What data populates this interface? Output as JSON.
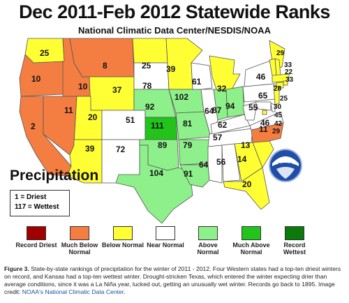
{
  "title": "Dec 2011-Feb 2012 Statewide Ranks",
  "subtitle": "National Climatic Data Center/NESDIS/NOAA",
  "map_label": "Precipitation",
  "key": {
    "driest": "1 = Driest",
    "wettest": "117 = Wettest"
  },
  "colors": {
    "record_driest": "#a10000",
    "much_below": "#f47e42",
    "below": "#ffff33",
    "near": "#ffffff",
    "above": "#8ef08a",
    "much_above": "#22c41c",
    "record_wettest": "#0b7a0b",
    "border": "#555555"
  },
  "legend": [
    {
      "label": "Record Driest",
      "color_key": "record_driest"
    },
    {
      "label": "Much Below Normal",
      "color_key": "much_below"
    },
    {
      "label": "Below Normal",
      "color_key": "below"
    },
    {
      "label": "Near Normal",
      "color_key": "near"
    },
    {
      "label": "Above Normal",
      "color_key": "above"
    },
    {
      "label": "Much Above Normal",
      "color_key": "much_above"
    },
    {
      "label": "Record Wettest",
      "color_key": "record_wettest"
    }
  ],
  "states": {
    "WA": {
      "rank": "25",
      "category": "below"
    },
    "OR": {
      "rank": "10",
      "category": "much_below"
    },
    "CA": {
      "rank": "2",
      "category": "much_below"
    },
    "NV": {
      "rank": "11",
      "category": "much_below"
    },
    "ID": {
      "rank": "10",
      "category": "much_below"
    },
    "MT": {
      "rank": "8",
      "category": "much_below"
    },
    "WY": {
      "rank": "37",
      "category": "below"
    },
    "UT": {
      "rank": "20",
      "category": "below"
    },
    "AZ": {
      "rank": "39",
      "category": "below"
    },
    "CO": {
      "rank": "51",
      "category": "near"
    },
    "NM": {
      "rank": "72",
      "category": "near"
    },
    "ND": {
      "rank": "25",
      "category": "below"
    },
    "SD": {
      "rank": "78",
      "category": "near"
    },
    "NE": {
      "rank": "92",
      "category": "above"
    },
    "KS": {
      "rank": "111",
      "category": "much_above"
    },
    "OK": {
      "rank": "89",
      "category": "above"
    },
    "TX": {
      "rank": "104",
      "category": "above"
    },
    "MN": {
      "rank": "39",
      "category": "below"
    },
    "IA": {
      "rank": "102",
      "category": "above"
    },
    "MO": {
      "rank": "81",
      "category": "above"
    },
    "AR": {
      "rank": "79",
      "category": "above"
    },
    "LA": {
      "rank": "91",
      "category": "above"
    },
    "WI": {
      "rank": "61",
      "category": "near"
    },
    "IL": {
      "rank": "64",
      "category": "near"
    },
    "MI": {
      "rank": "32",
      "category": "below"
    },
    "IN": {
      "rank": "87",
      "category": "above"
    },
    "OH": {
      "rank": "94",
      "category": "above"
    },
    "KY": {
      "rank": "62",
      "category": "near"
    },
    "TN": {
      "rank": "57",
      "category": "near"
    },
    "MS": {
      "rank": "64",
      "category": "near"
    },
    "AL": {
      "rank": "56",
      "category": "near"
    },
    "GA": {
      "rank": "14",
      "category": "below"
    },
    "FL": {
      "rank": "20",
      "category": "below"
    },
    "SC": {
      "rank": "13",
      "category": "below"
    },
    "NC": {
      "rank": "11",
      "category": "much_below"
    },
    "VA": {
      "rank": "46",
      "category": "near"
    },
    "WV": {
      "rank": "55",
      "category": "near"
    },
    "PA": {
      "rank": "65",
      "category": "near"
    },
    "NY": {
      "rank": "46",
      "category": "near"
    },
    "ME": {
      "rank": "29",
      "category": "below"
    },
    "VT": {
      "rank": "33",
      "category": "below"
    },
    "NH": {
      "rank": "22",
      "category": "below"
    },
    "MA": {
      "rank": "33",
      "category": "below"
    },
    "RI": {
      "rank": "28",
      "category": "below"
    },
    "CT": {
      "rank": "25",
      "category": "below"
    },
    "NJ": {
      "rank": "30",
      "category": "below"
    },
    "DE": {
      "rank": "45",
      "category": "near"
    },
    "MD": {
      "rank": "42",
      "category": "near"
    },
    "VA_DC": {
      "rank": "29",
      "category": "below"
    }
  },
  "logo_text": "NOAA",
  "caption": {
    "figure_label": "Figure 3.",
    "text": " State-by-state rankings of precipitation for the winter of 2011 - 2012. Four Western states had a top-ten driest winters on record, and Kansas had a top-ten wettest winter. Drought-stricken Texas, which entered the winter expecting drier than average conditions, since it was a La Niña year, lucked out, getting an unusually wet winter. Records go back to 1895. Image credit: ",
    "credit_link": "NOAA's National Climatic Data Center",
    "end": "."
  }
}
